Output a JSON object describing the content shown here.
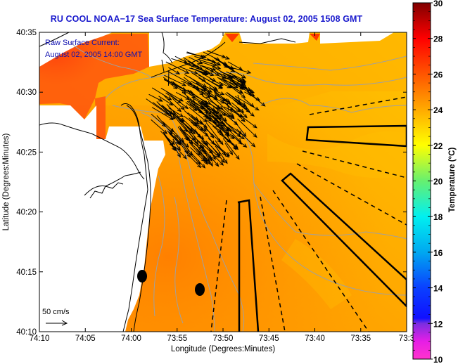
{
  "title": "RU COOL  NOAA−17  Sea Surface Temperature:  August 02, 2005 1508 GMT",
  "annotation": {
    "line1": "Raw Surface Current:",
    "line2": "August 02, 2005 14:00 GMT"
  },
  "scale_arrow": {
    "label": "50 cm/s",
    "speed_cm_s": 50
  },
  "axes": {
    "xlabel": "Longitude (Degrees:Minutes)",
    "ylabel": "Latitude (Degrees:Minutes)",
    "x_ticks": [
      "74:10",
      "74:05",
      "74:00",
      "73:55",
      "73:50",
      "73:45",
      "73:40",
      "73:35",
      "73:3"
    ],
    "y_ticks": [
      "40:35",
      "40:30",
      "40:25",
      "40:20",
      "40:15",
      "40:10"
    ],
    "x_range_minutes_west": [
      610,
      570
    ],
    "y_range_minutes_north": [
      2410,
      2435
    ]
  },
  "colorbar": {
    "label": "Temperature (°C)",
    "min": 10,
    "max": 30,
    "ticks": [
      "30",
      "28",
      "26",
      "24",
      "22",
      "20",
      "18",
      "16",
      "14",
      "12",
      "10"
    ],
    "stops": [
      {
        "value": 10,
        "color": "#ff33cc"
      },
      {
        "value": 11,
        "color": "#e61ee6"
      },
      {
        "value": 12,
        "color": "#7a2ee0"
      },
      {
        "value": 12.3,
        "color": "#1010ff"
      },
      {
        "value": 14,
        "color": "#0a40ff"
      },
      {
        "value": 16,
        "color": "#00a8f0"
      },
      {
        "value": 18,
        "color": "#00f0f0"
      },
      {
        "value": 20,
        "color": "#66f070"
      },
      {
        "value": 22,
        "color": "#ffff00"
      },
      {
        "value": 24,
        "color": "#ffaa00"
      },
      {
        "value": 26,
        "color": "#ff5500"
      },
      {
        "value": 28,
        "color": "#ff0000"
      },
      {
        "value": 30,
        "color": "#800000"
      }
    ]
  },
  "colors": {
    "title": "#1a1acd",
    "annotation": "#1010b0",
    "land": "#ffffff",
    "coast": "#000000",
    "bathymetry": "#a0a0a0",
    "sst_warm": "#ff8c00",
    "sst_cool": "#ffc000"
  }
}
